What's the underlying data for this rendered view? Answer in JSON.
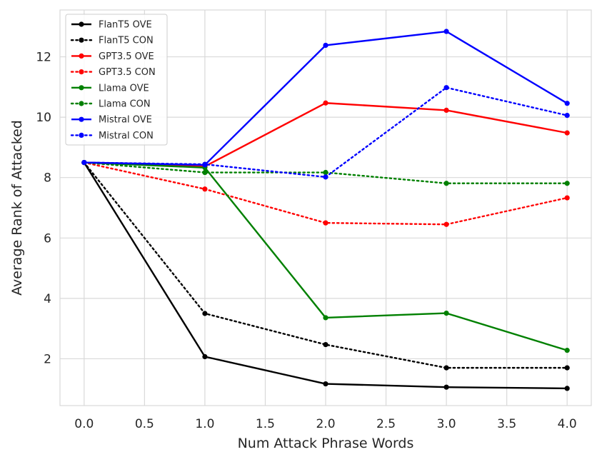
{
  "chart_data": {
    "type": "line",
    "title": "",
    "xlabel": "Num Attack Phrase Words",
    "ylabel": "Average Rank of Attacked",
    "x": [
      0,
      1,
      2,
      3,
      4
    ],
    "xlim": [
      -0.2,
      4.2
    ],
    "ylim": [
      0.45,
      13.55
    ],
    "xticks": [
      0.0,
      0.5,
      1.0,
      1.5,
      2.0,
      2.5,
      3.0,
      3.5,
      4.0
    ],
    "xtick_labels": [
      "0.0",
      "0.5",
      "1.0",
      "1.5",
      "2.0",
      "2.5",
      "3.0",
      "3.5",
      "4.0"
    ],
    "yticks": [
      2,
      4,
      6,
      8,
      10,
      12
    ],
    "ytick_labels": [
      "2",
      "4",
      "6",
      "8",
      "10",
      "12"
    ],
    "grid": true,
    "legend_position": "top-left",
    "series": [
      {
        "name": "FlanT5 OVE",
        "color": "#000000",
        "style": "solid",
        "values": [
          8.5,
          2.07,
          1.17,
          1.06,
          1.02
        ]
      },
      {
        "name": "FlanT5 CON",
        "color": "#000000",
        "style": "dotted",
        "values": [
          8.5,
          3.5,
          2.47,
          1.7,
          1.7
        ]
      },
      {
        "name": "GPT3.5 OVE",
        "color": "#ff0000",
        "style": "solid",
        "values": [
          8.5,
          8.37,
          10.47,
          10.23,
          9.48
        ]
      },
      {
        "name": "GPT3.5 CON",
        "color": "#ff0000",
        "style": "dotted",
        "values": [
          8.5,
          7.62,
          6.5,
          6.45,
          7.33
        ]
      },
      {
        "name": "Llama OVE",
        "color": "#008000",
        "style": "solid",
        "values": [
          8.5,
          8.33,
          3.36,
          3.51,
          2.28
        ]
      },
      {
        "name": "Llama CON",
        "color": "#008000",
        "style": "dotted",
        "values": [
          8.5,
          8.17,
          8.17,
          7.81,
          7.81
        ]
      },
      {
        "name": "Mistral OVE",
        "color": "#0000ff",
        "style": "solid",
        "values": [
          8.5,
          8.42,
          12.38,
          12.84,
          10.46
        ]
      },
      {
        "name": "Mistral CON",
        "color": "#0000ff",
        "style": "dotted",
        "values": [
          8.5,
          8.44,
          8.02,
          10.98,
          10.06
        ]
      }
    ]
  }
}
